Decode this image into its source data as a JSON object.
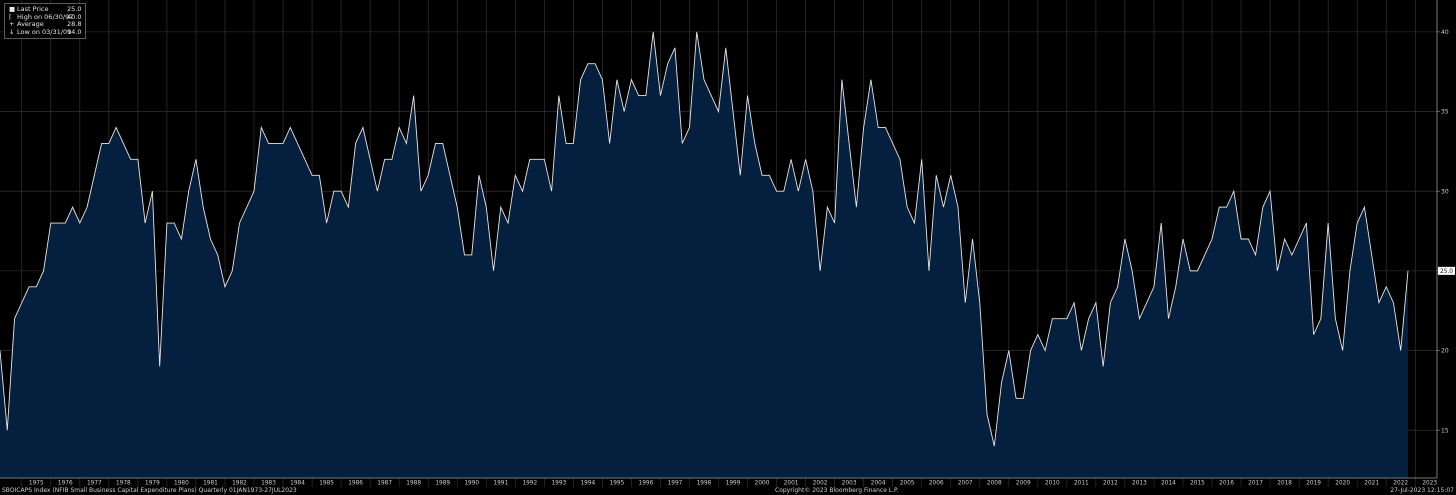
{
  "legend": {
    "items": [
      {
        "label": "Last Price",
        "value": "25.0",
        "symbol": "square"
      },
      {
        "label": "High on 06/30/97",
        "value": "40.0",
        "symbol": "tick-up"
      },
      {
        "label": "Average",
        "value": "28.8",
        "symbol": "plus"
      },
      {
        "label": "Low on 03/31/09",
        "value": "14.0",
        "symbol": "arrow-down"
      }
    ]
  },
  "footer": {
    "left": "SBOICAPS Index (NFIB Small Business Capital Expenditure Plans)  Quarterly 01JAN1973-27JUL2023",
    "center": "Copyright© 2023 Bloomberg Finance L.P.",
    "right": "27-Jul-2023 12:15:07"
  },
  "colors": {
    "background": "#000000",
    "area_fill": "#05203f",
    "line": "#e6e6e6",
    "grid": "#3b3b3b",
    "badge": "#ffffff"
  },
  "chart_data": {
    "type": "area",
    "ylim": [
      12,
      42
    ],
    "yticks": [
      15,
      20,
      25,
      30,
      35,
      40
    ],
    "grid": true,
    "legend_position": "top-left",
    "last_value_label": "25.0",
    "x_start": 1974.25,
    "x_step": 0.25,
    "x_end": 2023.75,
    "year_labels": [
      "1975",
      "1976",
      "1977",
      "1978",
      "1979",
      "1980",
      "1981",
      "1982",
      "1983",
      "1984",
      "1985",
      "1986",
      "1987",
      "1988",
      "1989",
      "1990",
      "1991",
      "1992",
      "1993",
      "1994",
      "1995",
      "1996",
      "1997",
      "1998",
      "1999",
      "2000",
      "2001",
      "2002",
      "2003",
      "2004",
      "2005",
      "2006",
      "2007",
      "2008",
      "2009",
      "2010",
      "2011",
      "2012",
      "2013",
      "2014",
      "2015",
      "2016",
      "2017",
      "2018",
      "2019",
      "2020",
      "2021",
      "2022",
      "2023"
    ],
    "values": [
      20,
      15,
      22,
      23,
      24,
      24,
      25,
      28,
      28,
      28,
      29,
      28,
      29,
      31,
      33,
      33,
      34,
      33,
      32,
      32,
      28,
      30,
      19,
      28,
      28,
      27,
      30,
      32,
      29,
      27,
      26,
      24,
      25,
      28,
      29,
      30,
      34,
      33,
      33,
      33,
      34,
      33,
      32,
      31,
      31,
      28,
      30,
      30,
      29,
      33,
      34,
      32,
      30,
      32,
      32,
      34,
      33,
      36,
      30,
      31,
      33,
      33,
      31,
      29,
      26,
      26,
      31,
      29,
      25,
      29,
      28,
      31,
      30,
      32,
      32,
      32,
      30,
      36,
      33,
      33,
      37,
      38,
      38,
      37,
      33,
      37,
      35,
      37,
      36,
      36,
      40,
      36,
      38,
      39,
      33,
      34,
      40,
      37,
      36,
      35,
      39,
      35,
      31,
      36,
      33,
      31,
      31,
      30,
      30,
      32,
      30,
      32,
      30,
      25,
      29,
      28,
      37,
      33,
      29,
      34,
      37,
      34,
      34,
      33,
      32,
      29,
      28,
      32,
      25,
      31,
      29,
      31,
      29,
      23,
      27,
      23,
      16,
      14,
      18,
      20,
      17,
      17,
      20,
      21,
      20,
      22,
      22,
      22,
      23,
      20,
      22,
      23,
      19,
      23,
      24,
      27,
      25,
      22,
      23,
      24,
      28,
      22,
      24,
      27,
      25,
      25,
      26,
      27,
      29,
      29,
      30,
      27,
      27,
      26,
      29,
      30,
      25,
      27,
      26,
      27,
      28,
      21,
      22,
      28,
      22,
      20,
      25,
      28,
      29,
      26,
      23,
      24,
      23,
      20,
      25
    ]
  }
}
